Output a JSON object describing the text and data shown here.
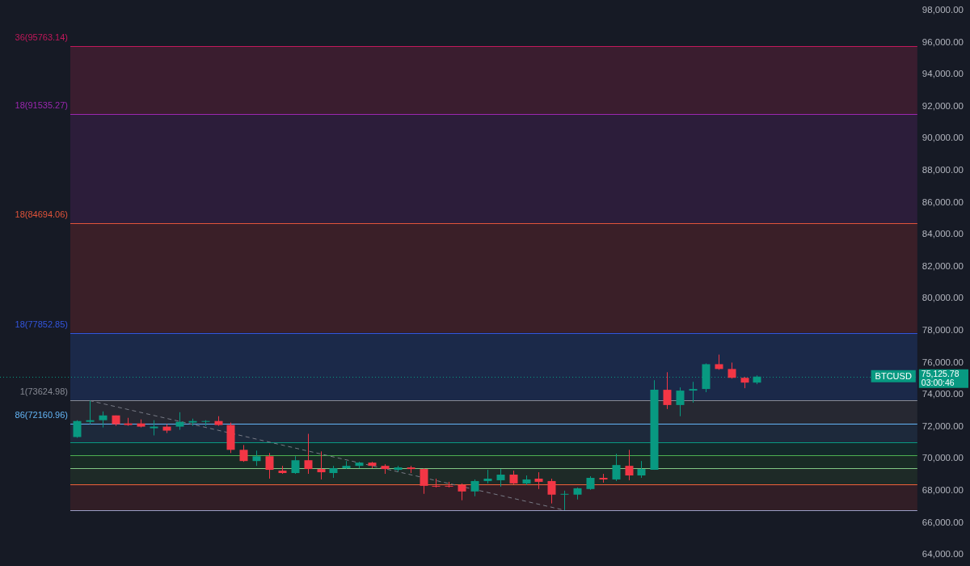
{
  "chart_data": {
    "type": "candlestick",
    "categories": [
      null,
      null,
      null,
      null,
      null,
      null,
      null,
      null,
      null,
      null,
      null,
      null,
      null,
      null,
      null,
      null,
      null,
      null,
      null,
      null,
      null,
      null,
      null,
      null,
      null,
      null,
      null,
      null,
      null,
      null,
      null,
      null,
      null,
      null,
      null,
      null,
      null,
      null,
      null,
      null,
      null,
      null,
      null,
      null,
      null,
      null,
      null,
      null,
      null,
      null,
      null,
      null,
      null,
      null,
      null,
      null,
      null,
      null,
      null,
      null,
      null,
      null,
      null,
      null,
      null,
      null
    ],
    "ohlc": [
      [
        71350,
        72400,
        71300,
        72350
      ],
      [
        72300,
        73624.98,
        72150,
        72400
      ],
      [
        72400,
        72950,
        71950,
        72700
      ],
      [
        72700,
        72700,
        72050,
        72150
      ],
      [
        72200,
        72550,
        72050,
        72100
      ],
      [
        72200,
        72450,
        71950,
        72000
      ],
      [
        71900,
        72400,
        71450,
        72000
      ],
      [
        72000,
        72150,
        71600,
        71750
      ],
      [
        72000,
        72900,
        71800,
        72300
      ],
      [
        72250,
        72500,
        72050,
        72350
      ],
      [
        72300,
        72400,
        72050,
        72350
      ],
      [
        72350,
        72650,
        72050,
        72100
      ],
      [
        72100,
        72250,
        70350,
        70550
      ],
      [
        70550,
        70850,
        69800,
        69850
      ],
      [
        69850,
        70500,
        69550,
        70150
      ],
      [
        70150,
        70350,
        68750,
        69300
      ],
      [
        69250,
        69550,
        69050,
        69100
      ],
      [
        69100,
        70150,
        69050,
        69900
      ],
      [
        69900,
        71550,
        69050,
        69350
      ],
      [
        69350,
        70450,
        68700,
        69150
      ],
      [
        69100,
        69550,
        68800,
        69400
      ],
      [
        69400,
        69850,
        69350,
        69550
      ],
      [
        69550,
        69800,
        69400,
        69750
      ],
      [
        69750,
        69800,
        69400,
        69550
      ],
      [
        69550,
        69650,
        69050,
        69350
      ],
      [
        69300,
        69550,
        69200,
        69450
      ],
      [
        69450,
        69550,
        69100,
        69350
      ],
      [
        69350,
        69400,
        67800,
        68300
      ],
      [
        68300,
        68750,
        68200,
        68250
      ],
      [
        68300,
        68550,
        68200,
        68250
      ],
      [
        68350,
        68450,
        67400,
        67950
      ],
      [
        67950,
        68700,
        67650,
        68600
      ],
      [
        68600,
        69300,
        68450,
        68750
      ],
      [
        68650,
        69350,
        68250,
        69000
      ],
      [
        69000,
        69250,
        68400,
        68450
      ],
      [
        68450,
        68950,
        68350,
        68700
      ],
      [
        68750,
        69150,
        68100,
        68550
      ],
      [
        68600,
        68750,
        67200,
        67750
      ],
      [
        67750,
        68000,
        66780,
        67800
      ],
      [
        67750,
        68200,
        67450,
        68150
      ],
      [
        68100,
        68900,
        68050,
        68800
      ],
      [
        68800,
        69050,
        68500,
        68700
      ],
      [
        68700,
        70300,
        68600,
        69600
      ],
      [
        69550,
        70550,
        68650,
        68950
      ],
      [
        68950,
        69850,
        68800,
        69350
      ],
      [
        69300,
        74900,
        69300,
        74300
      ],
      [
        74300,
        75400,
        73100,
        73350
      ],
      [
        73350,
        74450,
        72650,
        74250
      ],
      [
        74250,
        74800,
        73500,
        74350
      ],
      [
        74350,
        75950,
        74150,
        75900
      ],
      [
        75900,
        76500,
        75550,
        75600
      ],
      [
        75600,
        76000,
        75000,
        75050
      ],
      [
        75050,
        75100,
        74400,
        74750
      ],
      [
        74750,
        75200,
        74650,
        75125.78
      ],
      null,
      null,
      null,
      null,
      null,
      null,
      null,
      null,
      null,
      null,
      null,
      null
    ],
    "colors": [
      "#089981",
      "#089981",
      "#089981",
      "#f23645",
      "#f23645",
      "#f23645",
      "#089981",
      "#f23645",
      "#089981",
      "#089981",
      "#089981",
      "#f23645",
      "#f23645",
      "#f23645",
      "#089981",
      "#f23645",
      "#f23645",
      "#089981",
      "#f23645",
      "#f23645",
      "#089981",
      "#089981",
      "#089981",
      "#f23645",
      "#f23645",
      "#089981",
      "#f23645",
      "#f23645",
      "#f23645",
      "#f23645",
      "#f23645",
      "#089981",
      "#089981",
      "#089981",
      "#f23645",
      "#089981",
      "#f23645",
      "#f23645",
      "#089981",
      "#089981",
      "#089981",
      "#f23645",
      "#089981",
      "#f23645",
      "#089981",
      "#089981",
      "#f23645",
      "#089981",
      "#089981",
      "#089981",
      "#f23645",
      "#f23645",
      "#f23645",
      "#089981",
      null,
      null,
      null,
      null,
      null,
      null,
      null,
      null,
      null,
      null,
      null,
      null
    ],
    "series": [
      {
        "type": "line",
        "color": "#787b86",
        "line_style": "dashed",
        "values": [
          null,
          73624.98,
          null,
          null,
          null,
          null,
          null,
          null,
          null,
          null,
          null,
          null,
          null,
          null,
          null,
          null,
          null,
          null,
          null,
          null,
          null,
          null,
          null,
          null,
          null,
          null,
          null,
          null,
          null,
          null,
          null,
          null,
          null,
          null,
          null,
          null,
          null,
          null,
          66780,
          null,
          null,
          null,
          null,
          null,
          null,
          null,
          null,
          null,
          null,
          null,
          null,
          null,
          null,
          null,
          null,
          null,
          null,
          null,
          null,
          null,
          null,
          null,
          null,
          null,
          null,
          null
        ]
      }
    ],
    "marker": "none",
    "ylim": [
      64000,
      98000
    ],
    "yticks": [
      {
        "value": 64000,
        "label": "64,000.00"
      },
      {
        "value": 66000,
        "label": "66,000.00"
      },
      {
        "value": 68000,
        "label": "68,000.00"
      },
      {
        "value": 70000,
        "label": "70,000.00"
      },
      {
        "value": 72000,
        "label": "72,000.00"
      },
      {
        "value": 74000,
        "label": "74,000.00"
      },
      {
        "value": 76000,
        "label": "76,000.00"
      },
      {
        "value": 78000,
        "label": "78,000.00"
      },
      {
        "value": 80000,
        "label": "80,000.00"
      },
      {
        "value": 82000,
        "label": "82,000.00"
      },
      {
        "value": 84000,
        "label": "84,000.00"
      },
      {
        "value": 86000,
        "label": "86,000.00"
      },
      {
        "value": 88000,
        "label": "88,000.00"
      },
      {
        "value": 90000,
        "label": "90,000.00"
      },
      {
        "value": 92000,
        "label": "92,000.00"
      },
      {
        "value": 94000,
        "label": "94,000.00"
      },
      {
        "value": 96000,
        "label": "96,000.00"
      },
      {
        "value": 98000,
        "label": "98,000.00"
      }
    ],
    "tick_labels": "y",
    "grid": false,
    "bands": [
      {
        "axis": "y",
        "from": 91535.27,
        "to": 95763.14,
        "color": "#3a1d2f"
      },
      {
        "axis": "y",
        "from": 84694.06,
        "to": 91535.27,
        "color": "#2c1d3a"
      },
      {
        "axis": "y",
        "from": 77852.85,
        "to": 84694.06,
        "color": "#3a1f28"
      },
      {
        "axis": "y",
        "from": 73624.98,
        "to": 77852.85,
        "color": "#1b2949"
      },
      {
        "axis": "y",
        "from": 72160.96,
        "to": 73624.98,
        "color": "#262832"
      },
      {
        "axis": "y",
        "from": 71010,
        "to": 72160.96,
        "color": "#1d293b"
      },
      {
        "axis": "y",
        "from": 70200,
        "to": 71010,
        "color": "#13282a"
      },
      {
        "axis": "y",
        "from": 69400,
        "to": 70200,
        "color": "#192b25"
      },
      {
        "axis": "y",
        "from": 68400,
        "to": 69400,
        "color": "#1e2a27"
      },
      {
        "axis": "y",
        "from": 66780,
        "to": 68400,
        "color": "#311e26"
      }
    ],
    "ref_lines": [
      {
        "axis": "y",
        "value": 95763.14,
        "label": "36(95763.14)",
        "color": "#c2185b"
      },
      {
        "axis": "y",
        "value": 91535.27,
        "label": "18(91535.27)",
        "color": "#9c27b0"
      },
      {
        "axis": "y",
        "value": 84694.06,
        "label": "18(84694.06)",
        "color": "#e0533a"
      },
      {
        "axis": "y",
        "value": 77852.85,
        "label": "18(77852.85)",
        "color": "#3355dd"
      },
      {
        "axis": "y",
        "value": 73624.98,
        "label": "1(73624.98)",
        "color": "#868993"
      },
      {
        "axis": "y",
        "value": 72160.96,
        "label": "86(72160.96)",
        "color": "#64b5f6"
      },
      {
        "axis": "y",
        "value": 71010,
        "color": "#089981"
      },
      {
        "axis": "y",
        "value": 70200,
        "color": "#4caf50"
      },
      {
        "axis": "y",
        "value": 69400,
        "color": "#81c784"
      },
      {
        "axis": "y",
        "value": 68400,
        "color": "#f0603a"
      },
      {
        "axis": "y",
        "value": 66780,
        "color": "#9a9cc4"
      },
      {
        "axis": "y",
        "value": 75125.78,
        "label": "75,125.78",
        "color": "#089981",
        "line_style": "dotted"
      }
    ],
    "annotations": [
      {
        "text": "BTCUSD",
        "y": 75125.78
      },
      "03:00:46"
    ]
  }
}
